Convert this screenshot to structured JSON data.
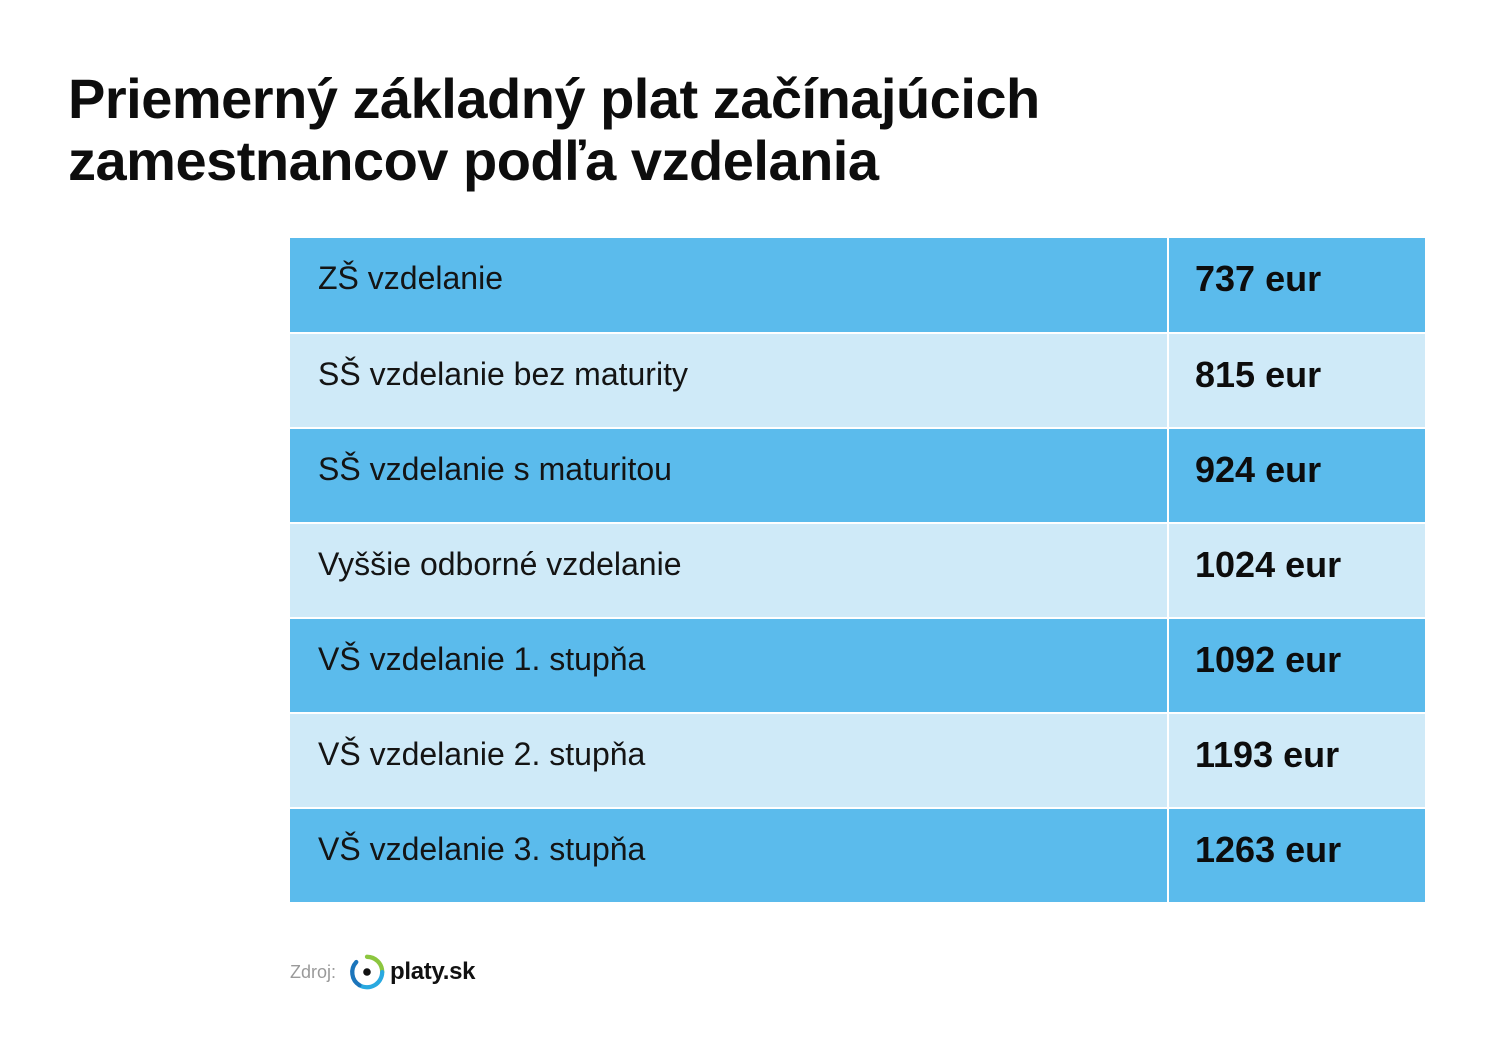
{
  "title": {
    "line1": "Priemerný základný plat začínajúcich",
    "line2": "zamestnancov podľa vzdelania"
  },
  "chart_data": {
    "type": "table",
    "columns": [
      "",
      ""
    ],
    "rows": [
      {
        "label": "ZŠ vzdelanie",
        "value": "737 eur",
        "amount": 737,
        "shade": "dark"
      },
      {
        "label": "SŠ vzdelanie bez maturity",
        "value": "815 eur",
        "amount": 815,
        "shade": "light"
      },
      {
        "label": "SŠ vzdelanie s maturitou",
        "value": "924 eur",
        "amount": 924,
        "shade": "dark"
      },
      {
        "label": "Vyššie odborné vzdelanie",
        "value": "1024 eur",
        "amount": 1024,
        "shade": "light"
      },
      {
        "label": "VŠ vzdelanie 1. stupňa",
        "value": "1092 eur",
        "amount": 1092,
        "shade": "dark"
      },
      {
        "label": "VŠ vzdelanie 2. stupňa",
        "value": "1193 eur",
        "amount": 1193,
        "shade": "light"
      },
      {
        "label": "VŠ vzdelanie 3. stupňa",
        "value": "1263 eur",
        "amount": 1263,
        "shade": "dark"
      }
    ],
    "colors": {
      "dark_row": "#5bbbec",
      "light_row": "#cfeaf8"
    }
  },
  "source": {
    "label": "Zdroj:",
    "logo_text": "platy.sk",
    "logo_icon": "platy-logo-icon"
  }
}
